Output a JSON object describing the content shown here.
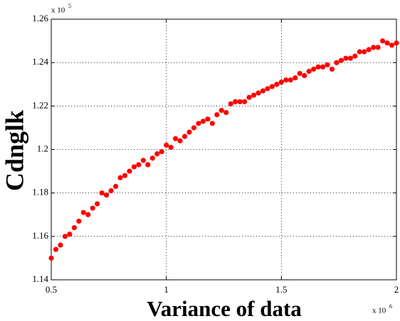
{
  "chart_data": {
    "type": "scatter",
    "x_label": "Variance of data",
    "y_label": "Cdnglk",
    "x_multiplier": {
      "base": "x 10",
      "exponent": "6"
    },
    "y_multiplier": {
      "base": "x 10",
      "exponent": "5"
    },
    "xlim": [
      0.5,
      2
    ],
    "xticks": [
      0.5,
      1,
      1.5,
      2
    ],
    "ylim": [
      1.14,
      1.26
    ],
    "yticks": [
      1.14,
      1.16,
      1.18,
      1.2,
      1.22,
      1.24,
      1.26
    ],
    "grid": true,
    "series": [
      {
        "color": "#ff0000",
        "x": [
          0.5,
          0.52,
          0.54,
          0.56,
          0.58,
          0.6,
          0.62,
          0.64,
          0.66,
          0.68,
          0.7,
          0.72,
          0.74,
          0.76,
          0.78,
          0.8,
          0.82,
          0.84,
          0.86,
          0.88,
          0.9,
          0.92,
          0.94,
          0.96,
          0.98,
          1.0,
          1.02,
          1.04,
          1.06,
          1.08,
          1.1,
          1.12,
          1.14,
          1.16,
          1.18,
          1.2,
          1.22,
          1.24,
          1.26,
          1.28,
          1.3,
          1.32,
          1.34,
          1.36,
          1.38,
          1.4,
          1.42,
          1.44,
          1.46,
          1.48,
          1.5,
          1.52,
          1.54,
          1.56,
          1.58,
          1.6,
          1.62,
          1.64,
          1.66,
          1.68,
          1.7,
          1.72,
          1.74,
          1.76,
          1.78,
          1.8,
          1.82,
          1.84,
          1.86,
          1.88,
          1.9,
          1.92,
          1.94,
          1.96,
          1.98,
          2.0
        ],
        "values": [
          1.15,
          1.154,
          1.156,
          1.16,
          1.161,
          1.164,
          1.167,
          1.171,
          1.17,
          1.173,
          1.175,
          1.18,
          1.179,
          1.181,
          1.183,
          1.187,
          1.188,
          1.19,
          1.192,
          1.193,
          1.195,
          1.193,
          1.196,
          1.198,
          1.199,
          1.202,
          1.201,
          1.205,
          1.204,
          1.206,
          1.208,
          1.21,
          1.212,
          1.213,
          1.214,
          1.212,
          1.216,
          1.218,
          1.217,
          1.221,
          1.222,
          1.222,
          1.222,
          1.224,
          1.225,
          1.226,
          1.227,
          1.228,
          1.229,
          1.23,
          1.231,
          1.232,
          1.232,
          1.233,
          1.235,
          1.234,
          1.236,
          1.237,
          1.238,
          1.238,
          1.239,
          1.237,
          1.24,
          1.241,
          1.242,
          1.242,
          1.243,
          1.245,
          1.245,
          1.246,
          1.247,
          1.247,
          1.25,
          1.249,
          1.248,
          1.249
        ]
      }
    ]
  }
}
